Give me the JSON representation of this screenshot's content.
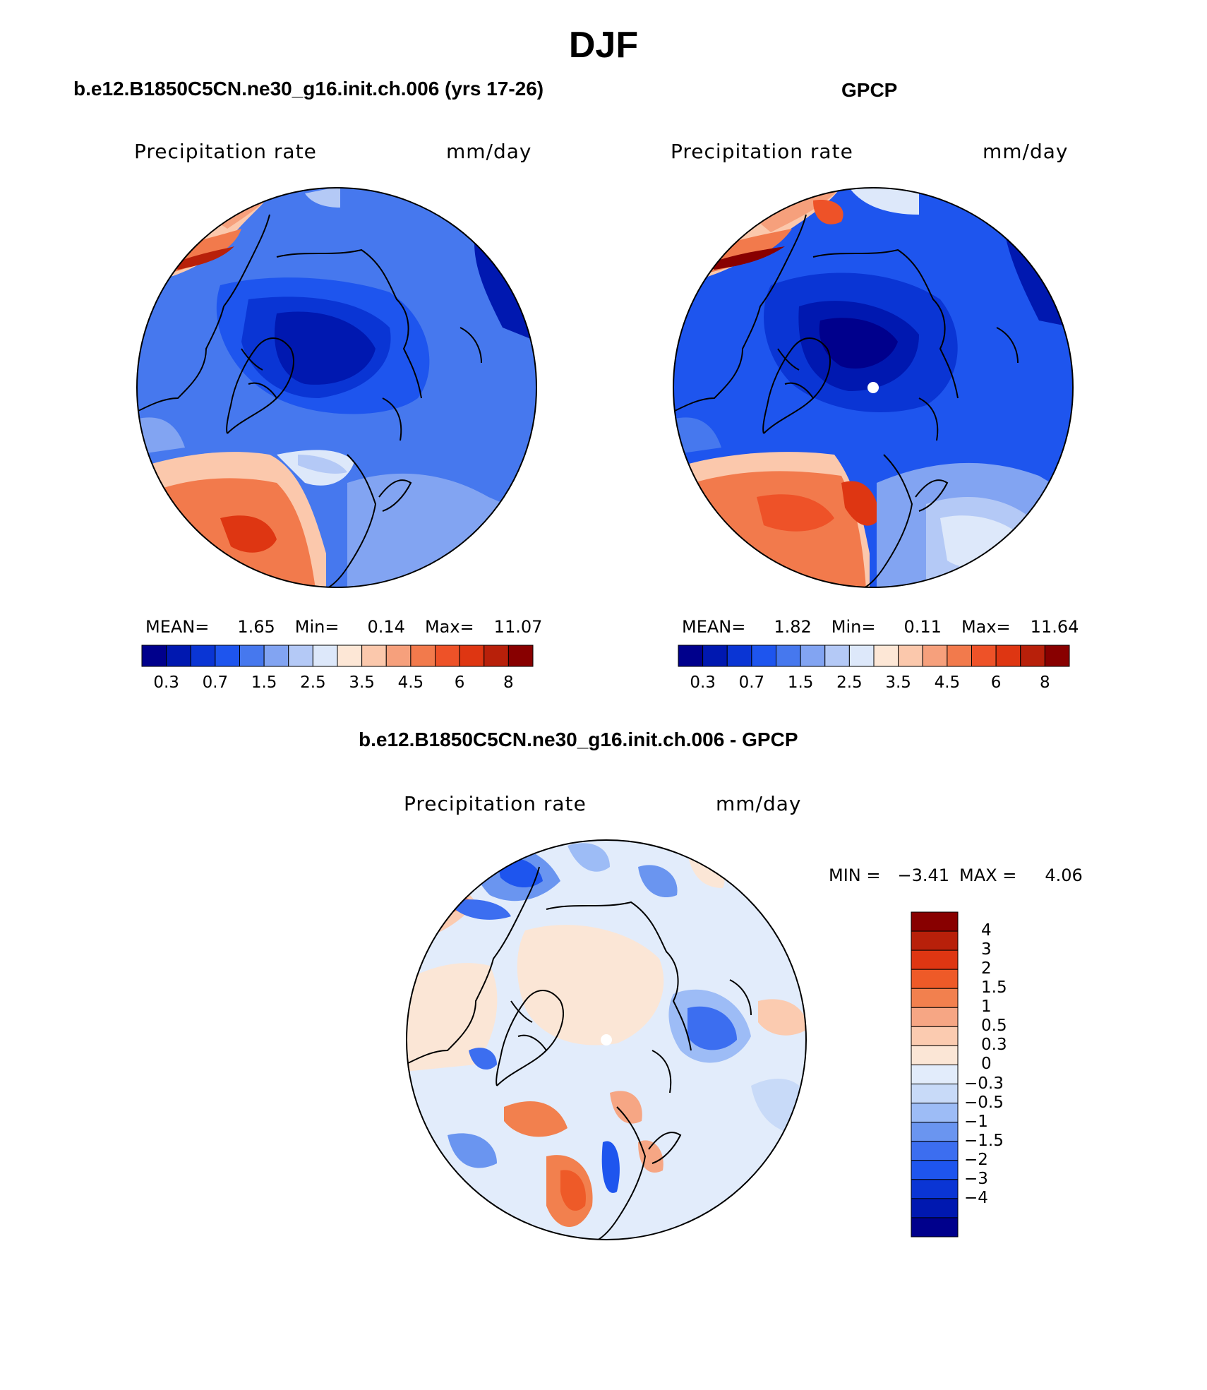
{
  "title": "DJF",
  "panels": [
    {
      "title": "b.e12.B1850C5CN.ne30_g16.init.ch.006 (yrs 17-26)",
      "variable": "Precipitation rate",
      "units": "mm/day",
      "stats": {
        "mean_label": "MEAN=",
        "mean": "1.65",
        "min_label": "Min=",
        "min": "0.14",
        "max_label": "Max=",
        "max": "11.07"
      }
    },
    {
      "title": "GPCP",
      "variable": "Precipitation rate",
      "units": "mm/day",
      "stats": {
        "mean_label": "MEAN=",
        "mean": "1.82",
        "min_label": "Min=",
        "min": "0.11",
        "max_label": "Max=",
        "max": "11.64"
      }
    },
    {
      "title": "b.e12.B1850C5CN.ne30_g16.init.ch.006 - GPCP",
      "variable": "Precipitation rate",
      "units": "mm/day",
      "stats": {
        "min_label": "MIN =",
        "min": "−3.41",
        "max_label": "MAX =",
        "max": "4.06"
      }
    }
  ],
  "abs_colorbar": {
    "colors": [
      "#00008c",
      "#0018b0",
      "#0a35d4",
      "#1e55ee",
      "#4678ee",
      "#82a4f2",
      "#b4c9f6",
      "#dde8fa",
      "#fde7d6",
      "#fbc8ac",
      "#f6a07c",
      "#f27a4c",
      "#ee5228",
      "#de3612",
      "#b8200a",
      "#880000"
    ],
    "tick_labels": [
      "0.3",
      "0.7",
      "1.5",
      "2.5",
      "3.5",
      "4.5",
      "6",
      "8"
    ]
  },
  "diff_colorbar": {
    "colors": [
      "#00008c",
      "#0018b0",
      "#0a35d4",
      "#1e55ee",
      "#3c6ef0",
      "#6a95f0",
      "#9dbcf6",
      "#c8daf8",
      "#e2ecfb",
      "#fbe6d6",
      "#fbcbb0",
      "#f6a684",
      "#f2804e",
      "#ee5a28",
      "#de3612",
      "#b8200a",
      "#880000"
    ],
    "tick_labels": [
      "4",
      "3",
      "2",
      "1.5",
      "1",
      "0.5",
      "0.3",
      "0",
      "−0.3",
      "−0.5",
      "−1",
      "−1.5",
      "−2",
      "−3",
      "−4"
    ]
  }
}
